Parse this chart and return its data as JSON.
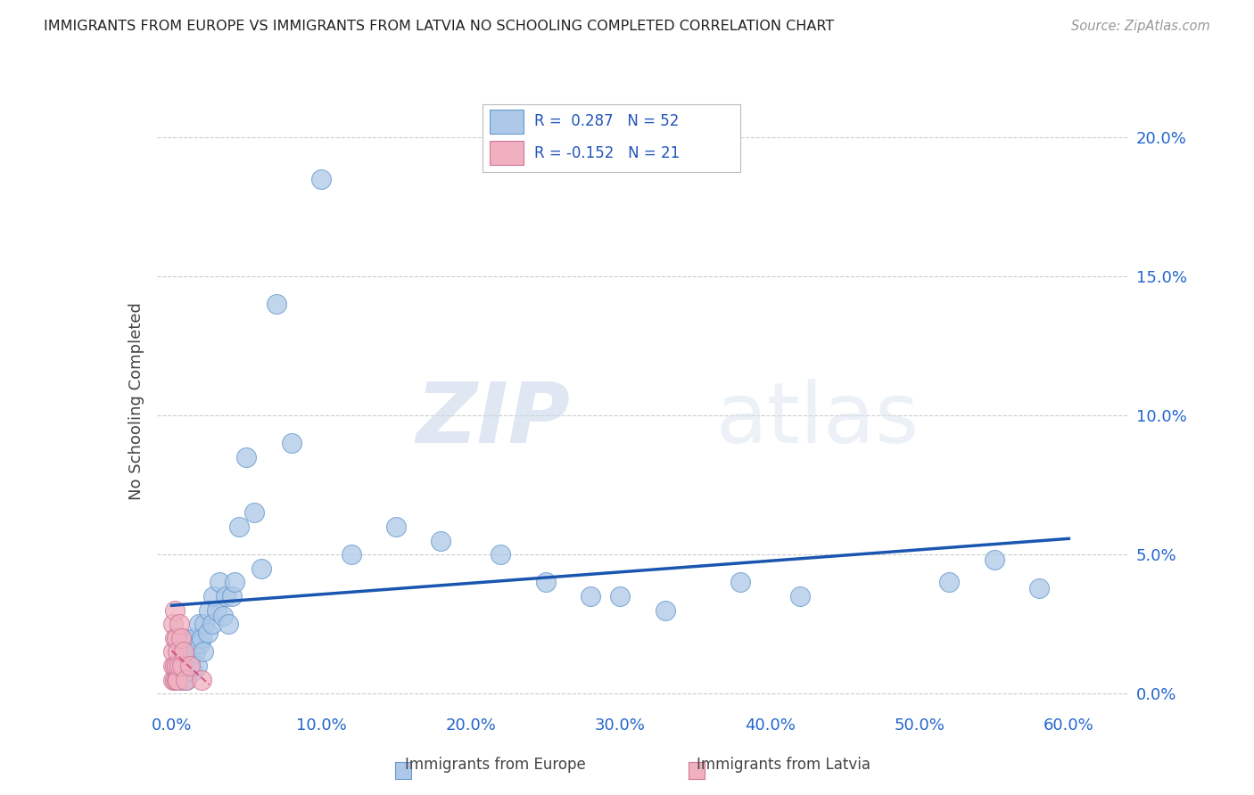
{
  "title": "IMMIGRANTS FROM EUROPE VS IMMIGRANTS FROM LATVIA NO SCHOOLING COMPLETED CORRELATION CHART",
  "source": "Source: ZipAtlas.com",
  "xlabel_ticks": [
    "0.0%",
    "10.0%",
    "20.0%",
    "30.0%",
    "40.0%",
    "50.0%",
    "60.0%"
  ],
  "xlabel_vals": [
    0.0,
    0.1,
    0.2,
    0.3,
    0.4,
    0.5,
    0.6
  ],
  "ylabel_ticks": [
    "0.0%",
    "5.0%",
    "10.0%",
    "15.0%",
    "20.0%"
  ],
  "ylabel_vals": [
    0.0,
    0.05,
    0.1,
    0.15,
    0.2
  ],
  "ylabel_label": "No Schooling Completed",
  "legend_labels": [
    "Immigrants from Europe",
    "Immigrants from Latvia"
  ],
  "R_europe": 0.287,
  "N_europe": 52,
  "R_latvia": -0.152,
  "N_latvia": 21,
  "europe_color": "#adc8e8",
  "europe_edge": "#6699cc",
  "latvia_color": "#f0b0c0",
  "latvia_edge": "#cc7799",
  "trendline_europe_color": "#1a56b0",
  "trendline_latvia_color": "#cc3366",
  "background_color": "#ffffff",
  "watermark_zip": "ZIP",
  "watermark_atlas": "atlas",
  "xlim": [
    -0.01,
    0.64
  ],
  "ylim": [
    -0.005,
    0.215
  ],
  "europe_x": [
    0.003,
    0.005,
    0.006,
    0.007,
    0.008,
    0.008,
    0.009,
    0.01,
    0.01,
    0.011,
    0.012,
    0.013,
    0.014,
    0.015,
    0.016,
    0.017,
    0.018,
    0.019,
    0.02,
    0.021,
    0.022,
    0.024,
    0.025,
    0.027,
    0.028,
    0.03,
    0.032,
    0.034,
    0.036,
    0.038,
    0.04,
    0.042,
    0.045,
    0.05,
    0.055,
    0.06,
    0.07,
    0.08,
    0.1,
    0.12,
    0.15,
    0.18,
    0.22,
    0.25,
    0.28,
    0.3,
    0.33,
    0.38,
    0.42,
    0.52,
    0.55,
    0.58
  ],
  "europe_y": [
    0.01,
    0.008,
    0.005,
    0.015,
    0.01,
    0.02,
    0.008,
    0.015,
    0.005,
    0.01,
    0.018,
    0.012,
    0.008,
    0.02,
    0.015,
    0.01,
    0.025,
    0.018,
    0.02,
    0.015,
    0.025,
    0.022,
    0.03,
    0.025,
    0.035,
    0.03,
    0.04,
    0.028,
    0.035,
    0.025,
    0.035,
    0.04,
    0.06,
    0.085,
    0.065,
    0.045,
    0.14,
    0.09,
    0.185,
    0.05,
    0.06,
    0.055,
    0.05,
    0.04,
    0.035,
    0.035,
    0.03,
    0.04,
    0.035,
    0.04,
    0.048,
    0.038
  ],
  "latvia_x": [
    0.001,
    0.001,
    0.001,
    0.001,
    0.002,
    0.002,
    0.002,
    0.002,
    0.003,
    0.003,
    0.003,
    0.004,
    0.004,
    0.005,
    0.005,
    0.006,
    0.007,
    0.008,
    0.009,
    0.012,
    0.02
  ],
  "latvia_y": [
    0.005,
    0.01,
    0.015,
    0.025,
    0.005,
    0.01,
    0.02,
    0.03,
    0.005,
    0.01,
    0.02,
    0.005,
    0.015,
    0.01,
    0.025,
    0.02,
    0.01,
    0.015,
    0.005,
    0.01,
    0.005
  ]
}
